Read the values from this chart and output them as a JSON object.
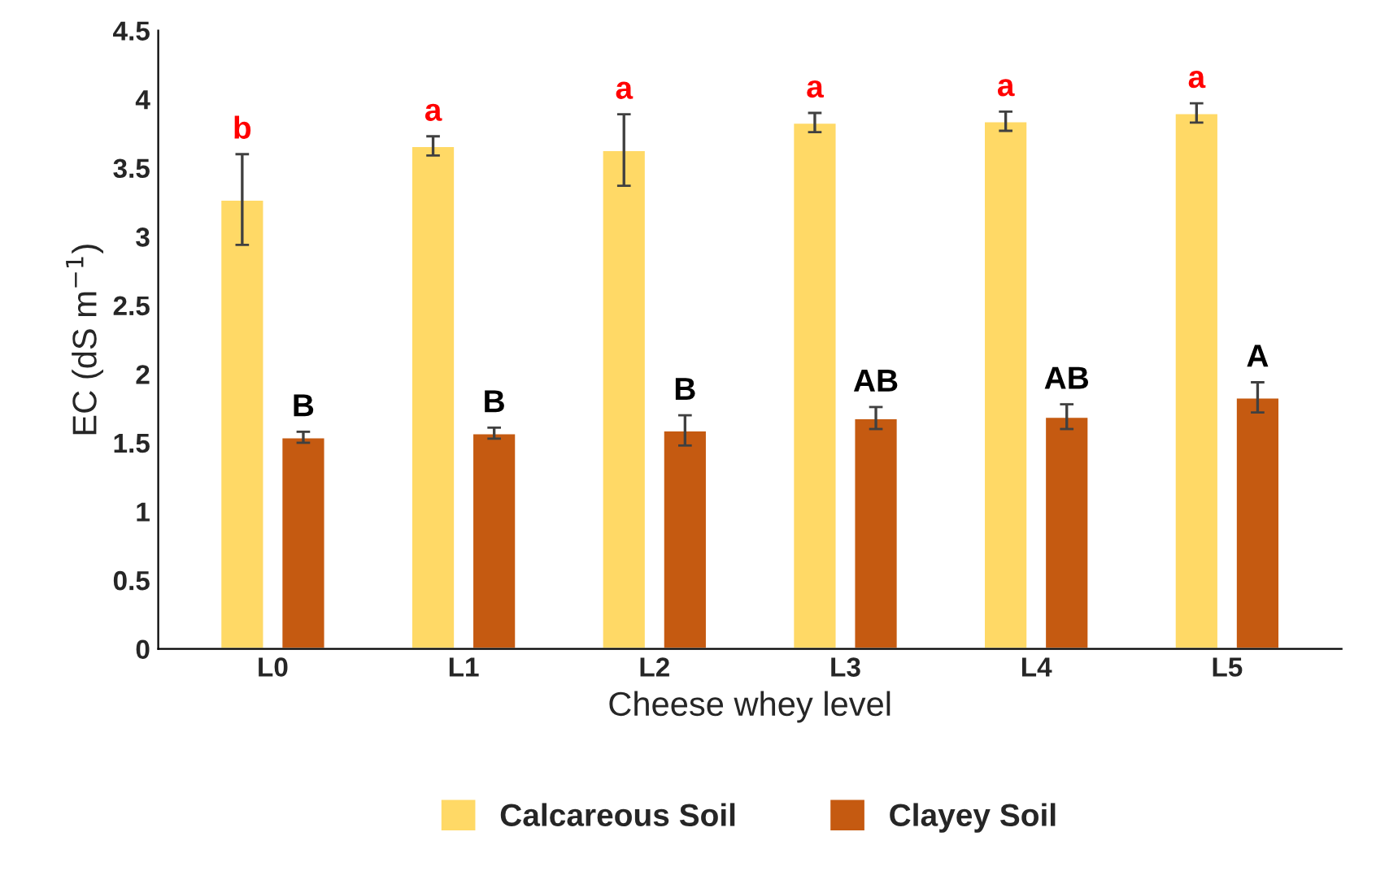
{
  "chart_data": {
    "type": "bar",
    "xlabel": "Cheese whey level",
    "ylabel": "EC (dS m$^{−1}$)",
    "categories": [
      "L0",
      "L1",
      "L2",
      "L3",
      "L4",
      "L5"
    ],
    "series": [
      {
        "name": "Calcareous Soil",
        "color": "#ffd966",
        "values": [
          3.27,
          3.66,
          3.63,
          3.83,
          3.84,
          3.9
        ],
        "errors": [
          0.33,
          0.07,
          0.26,
          0.07,
          0.07,
          0.07
        ],
        "value_labels": [
          "b",
          "a",
          "a",
          "a",
          "a",
          "a"
        ]
      },
      {
        "name": "Clayey Soil",
        "color": "#c55a11",
        "values": [
          1.54,
          1.57,
          1.59,
          1.68,
          1.69,
          1.83
        ],
        "errors": [
          0.04,
          0.04,
          0.11,
          0.08,
          0.09,
          0.11
        ],
        "value_labels": [
          "B",
          "B",
          "B",
          "AB",
          "AB",
          "A"
        ]
      }
    ],
    "ylim": [
      0,
      4.5
    ],
    "yticks": [
      0,
      0.5,
      1,
      1.5,
      2,
      2.5,
      3,
      3.5,
      4,
      4.5
    ],
    "grid": false,
    "legend": "bottom"
  }
}
